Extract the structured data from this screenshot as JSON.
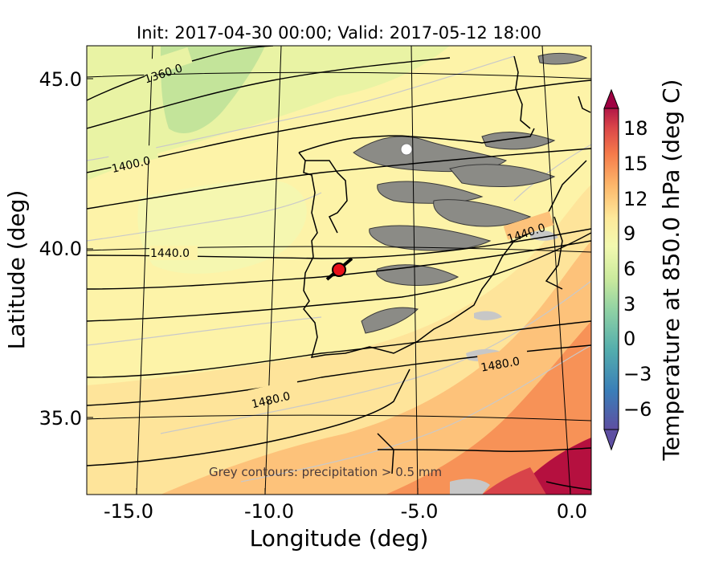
{
  "title": "Init: 2017-04-30 00:00; Valid: 2017-05-12 18:00",
  "axes": {
    "xlabel": "Longitude (deg)",
    "ylabel": "Latitude (deg)",
    "xticks": [
      "-15.0",
      "-10.0",
      "-5.0",
      "0.0"
    ],
    "yticks": [
      "45.0",
      "40.0",
      "35.0"
    ],
    "lon_range": [
      -16,
      0.3
    ],
    "lat_range": [
      32.5,
      46
    ]
  },
  "colorbar": {
    "label": "Temperature at 850.0 hPa (deg C)",
    "ticks": [
      "18",
      "15",
      "12",
      "9",
      "6",
      "3",
      "0",
      "−3",
      "−6"
    ],
    "range": [
      -8,
      21
    ],
    "extend": "both",
    "colormap": "Spectral_r",
    "low_color": "#5e4fa2",
    "high_color": "#9e0142"
  },
  "contour_labels": [
    {
      "text": "1360.0"
    },
    {
      "text": "1400.0"
    },
    {
      "text": "1440.0"
    },
    {
      "text": "1440.0"
    },
    {
      "text": "1480.0"
    },
    {
      "text": "1480.0"
    }
  ],
  "annotation": "Grey contours: precipitation > 0.5 mm",
  "marker": {
    "lon": -7.7,
    "lat": 39.3,
    "color": "#e8101a",
    "icon": "location-dot-icon"
  },
  "grid": true
}
